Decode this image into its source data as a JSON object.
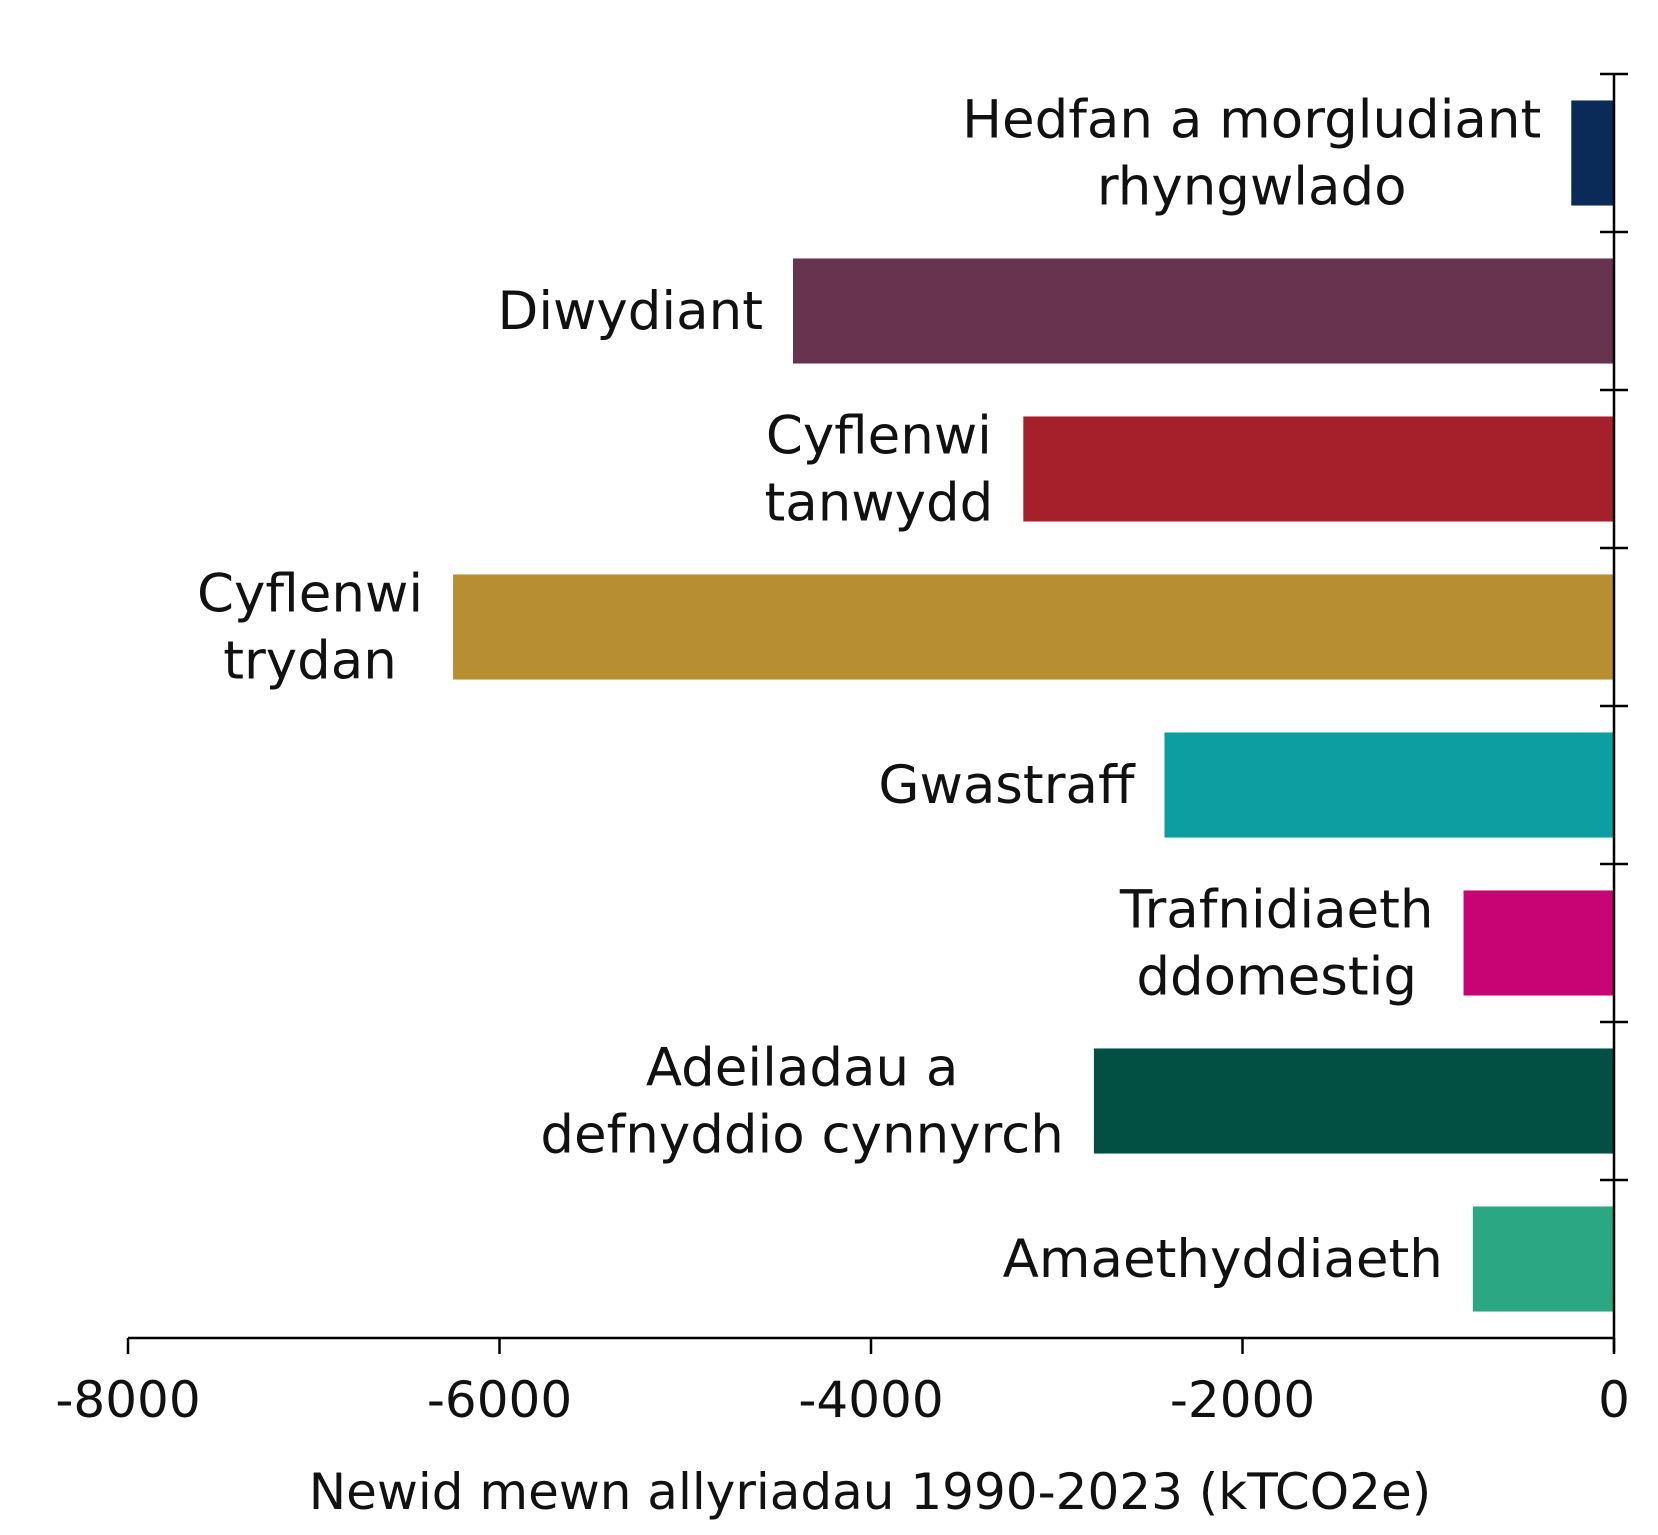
{
  "chart_data": {
    "type": "bar",
    "orientation": "horizontal",
    "categories": [
      [
        "Hedfan a morgludiant",
        "rhyngwlado"
      ],
      [
        "Diwydiant"
      ],
      [
        "Cyflenwi",
        "tanwydd"
      ],
      [
        "Cyflenwi",
        "trydan"
      ],
      [
        "Gwastraff"
      ],
      [
        "Trafnidiaeth",
        "ddomestig"
      ],
      [
        "Adeiladau a",
        "defnyddio cynnyrch"
      ],
      [
        "Amaethyddiaeth"
      ]
    ],
    "values": [
      -230,
      -4420,
      -3180,
      -6250,
      -2420,
      -810,
      -2800,
      -760
    ],
    "colors": [
      "#0a2a57",
      "#67334f",
      "#a6202b",
      "#b78e31",
      "#0c9ea1",
      "#c80474",
      "#024f44",
      "#2ba784"
    ],
    "xlabel": "Newid mewn allyriadau 1990-2023 (kTCO2e)",
    "ylabel": "",
    "title": "",
    "xlim": [
      -8000,
      0
    ],
    "xticks": [
      -8000,
      -6000,
      -4000,
      -2000,
      0
    ],
    "xtick_labels": [
      "-8000",
      "-6000",
      "-4000",
      "-2000",
      "0"
    ],
    "grid": false,
    "legend": "none"
  }
}
